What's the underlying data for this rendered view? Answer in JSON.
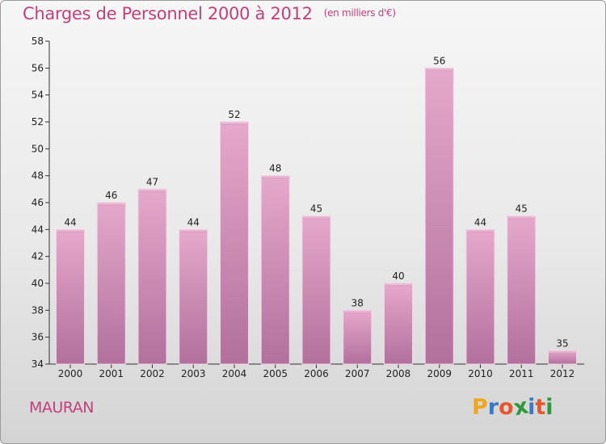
{
  "title": "Charges de Personnel 2000 à 2012",
  "subtitle": "(en milliers d'€)",
  "commune": "MAURAN",
  "logo": {
    "letters": [
      "P",
      "r",
      "o",
      "x",
      "i",
      "t",
      "i"
    ],
    "colors": [
      "#f0a81a",
      "#3a78c8",
      "#e8562a",
      "#2c9a3c",
      "#3a78c8",
      "#e8562a",
      "#2c9a3c"
    ]
  },
  "chart_data": {
    "type": "bar",
    "categories": [
      "2000",
      "2001",
      "2002",
      "2003",
      "2004",
      "2005",
      "2006",
      "2007",
      "2008",
      "2009",
      "2010",
      "2011",
      "2012"
    ],
    "values": [
      44,
      46,
      47,
      44,
      52,
      48,
      45,
      38,
      40,
      56,
      44,
      45,
      35
    ],
    "ylim": [
      34,
      58
    ],
    "yticks": [
      34,
      36,
      38,
      40,
      42,
      44,
      46,
      48,
      50,
      52,
      54,
      56,
      58
    ],
    "grid": false,
    "bar_color": "#d98bb6"
  }
}
